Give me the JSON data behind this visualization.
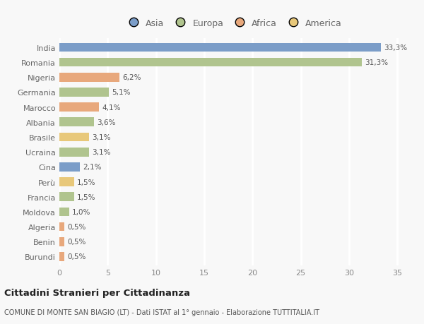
{
  "categories": [
    "India",
    "Romania",
    "Nigeria",
    "Germania",
    "Marocco",
    "Albania",
    "Brasile",
    "Ucraina",
    "Cina",
    "Perù",
    "Francia",
    "Moldova",
    "Algeria",
    "Benin",
    "Burundi"
  ],
  "values": [
    33.3,
    31.3,
    6.2,
    5.1,
    4.1,
    3.6,
    3.1,
    3.1,
    2.1,
    1.5,
    1.5,
    1.0,
    0.5,
    0.5,
    0.5
  ],
  "labels": [
    "33,3%",
    "31,3%",
    "6,2%",
    "5,1%",
    "4,1%",
    "3,6%",
    "3,1%",
    "3,1%",
    "2,1%",
    "1,5%",
    "1,5%",
    "1,0%",
    "0,5%",
    "0,5%",
    "0,5%"
  ],
  "colors": [
    "#7b9dc8",
    "#b0c48e",
    "#e8a87c",
    "#b0c48e",
    "#e8a87c",
    "#b0c48e",
    "#e8c87a",
    "#b0c48e",
    "#7b9dc8",
    "#e8c87a",
    "#b0c48e",
    "#b0c48e",
    "#e8a87c",
    "#e8a87c",
    "#e8a87c"
  ],
  "legend_labels": [
    "Asia",
    "Europa",
    "Africa",
    "America"
  ],
  "legend_colors": [
    "#7b9dc8",
    "#b0c48e",
    "#e8a87c",
    "#e8c87a"
  ],
  "title": "Cittadini Stranieri per Cittadinanza",
  "subtitle": "COMUNE DI MONTE SAN BIAGIO (LT) - Dati ISTAT al 1° gennaio - Elaborazione TUTTITALIA.IT",
  "xlim": [
    0,
    36
  ],
  "xticks": [
    0,
    5,
    10,
    15,
    20,
    25,
    30,
    35
  ],
  "background_color": "#f8f8f8",
  "grid_color": "#ffffff",
  "bar_height": 0.6
}
